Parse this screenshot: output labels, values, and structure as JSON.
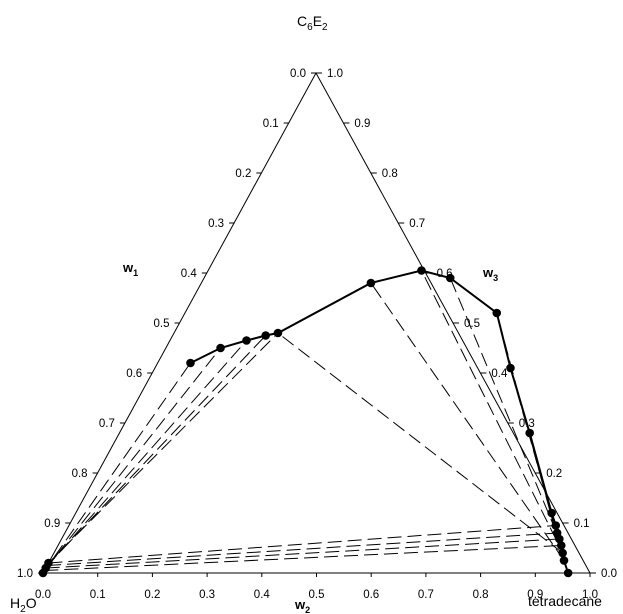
{
  "chart_data": {
    "type": "scatter",
    "subtype": "ternary-phase-diagram",
    "corners": {
      "top": "C6E2",
      "left": "H2O",
      "right": "tetradecane"
    },
    "corner_labels": {
      "top": {
        "base": "C",
        "sub1": "6",
        "mid": "E",
        "sub2": "2"
      },
      "left": {
        "base": "H",
        "sub": "2",
        "tail": "O"
      },
      "right": "tetradecane"
    },
    "axis_labels": {
      "w1": {
        "base": "w",
        "sub": "1"
      },
      "w2": {
        "base": "w",
        "sub": "2"
      },
      "w3": {
        "base": "w",
        "sub": "3"
      }
    },
    "ticks": {
      "w1": [
        "0.0",
        "0.1",
        "0.2",
        "0.3",
        "0.4",
        "0.5",
        "0.6",
        "0.7",
        "0.8",
        "0.9",
        "1.0"
      ],
      "w2": [
        "0.0",
        "0.1",
        "0.2",
        "0.3",
        "0.4",
        "0.5",
        "0.6",
        "0.7",
        "0.8",
        "0.9",
        "1.0"
      ],
      "w3": [
        "1.0",
        "0.9",
        "0.8",
        "0.7",
        "0.6",
        "0.5",
        "0.4",
        "0.3",
        "0.2",
        "0.1",
        "0.0"
      ]
    },
    "ranges": {
      "w1": [
        0,
        1
      ],
      "w2": [
        0,
        1
      ],
      "w3": [
        0,
        1
      ]
    },
    "binodal_curve": [
      {
        "w2": 0.96,
        "w3": 0.0
      },
      {
        "w2": 0.94,
        "w3": 0.025
      },
      {
        "w2": 0.93,
        "w3": 0.04
      },
      {
        "w2": 0.92,
        "w3": 0.055
      },
      {
        "w2": 0.91,
        "w3": 0.068
      },
      {
        "w2": 0.9,
        "w3": 0.08
      },
      {
        "w2": 0.89,
        "w3": 0.095
      },
      {
        "w2": 0.87,
        "w3": 0.12
      },
      {
        "w2": 0.75,
        "w3": 0.28
      },
      {
        "w2": 0.65,
        "w3": 0.41
      },
      {
        "w2": 0.57,
        "w3": 0.52
      },
      {
        "w2": 0.45,
        "w3": 0.59
      },
      {
        "w2": 0.39,
        "w3": 0.605
      },
      {
        "w2": 0.31,
        "w3": 0.58
      },
      {
        "w2": 0.19,
        "w3": 0.48
      },
      {
        "w2": 0.17,
        "w3": 0.475
      },
      {
        "w2": 0.14,
        "w3": 0.465
      },
      {
        "w2": 0.1,
        "w3": 0.45
      },
      {
        "w2": 0.06,
        "w3": 0.42
      }
    ],
    "water_rich_points": [
      {
        "w2": 0.0,
        "w3": 0.02
      },
      {
        "w2": 0.0,
        "w3": 0.01
      },
      {
        "w2": 0.0,
        "w3": 0.0
      }
    ],
    "tie_lines": [
      {
        "from": {
          "w2": 0.0,
          "w3": 0.0
        },
        "to": {
          "w2": 0.06,
          "w3": 0.42
        }
      },
      {
        "from": {
          "w2": 0.0,
          "w3": 0.005
        },
        "to": {
          "w2": 0.1,
          "w3": 0.45
        }
      },
      {
        "from": {
          "w2": 0.0,
          "w3": 0.01
        },
        "to": {
          "w2": 0.14,
          "w3": 0.465
        }
      },
      {
        "from": {
          "w2": 0.0,
          "w3": 0.015
        },
        "to": {
          "w2": 0.17,
          "w3": 0.475
        }
      },
      {
        "from": {
          "w2": 0.0,
          "w3": 0.02
        },
        "to": {
          "w2": 0.19,
          "w3": 0.48
        }
      },
      {
        "from": {
          "w2": 0.0,
          "w3": 0.005
        },
        "to": {
          "w2": 0.92,
          "w3": 0.055
        }
      },
      {
        "from": {
          "w2": 0.0,
          "w3": 0.01
        },
        "to": {
          "w2": 0.91,
          "w3": 0.068
        }
      },
      {
        "from": {
          "w2": 0.0,
          "w3": 0.015
        },
        "to": {
          "w2": 0.9,
          "w3": 0.08
        }
      },
      {
        "from": {
          "w2": 0.0,
          "w3": 0.02
        },
        "to": {
          "w2": 0.89,
          "w3": 0.095
        }
      },
      {
        "from": {
          "w2": 0.93,
          "w3": 0.04
        },
        "to": {
          "w2": 0.19,
          "w3": 0.48
        }
      },
      {
        "from": {
          "w2": 0.94,
          "w3": 0.025
        },
        "to": {
          "w2": 0.31,
          "w3": 0.58
        }
      },
      {
        "from": {
          "w2": 0.94,
          "w3": 0.03
        },
        "to": {
          "w2": 0.39,
          "w3": 0.605
        }
      },
      {
        "from": {
          "w2": 0.93,
          "w3": 0.045
        },
        "to": {
          "w2": 0.45,
          "w3": 0.59
        }
      },
      {
        "from": {
          "w2": 0.92,
          "w3": 0.05
        },
        "to": {
          "w2": 0.57,
          "w3": 0.52
        }
      },
      {
        "from": {
          "w2": 0.91,
          "w3": 0.065
        },
        "to": {
          "w2": 0.65,
          "w3": 0.41
        }
      }
    ],
    "grid": false,
    "legend": "none"
  }
}
